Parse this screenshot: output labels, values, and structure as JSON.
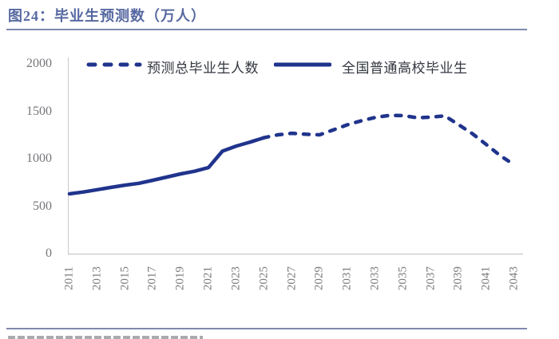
{
  "header": {
    "title": "图24：毕业生预测数（万人）"
  },
  "colors": {
    "line": "#20348c",
    "title_text": "#5668a0",
    "divider": "#7f88ad",
    "tick_text": "#76767b",
    "legend_text": "#33373f"
  },
  "chart_data": {
    "type": "line",
    "title": "毕业生预测数（万人）",
    "xlabel": "",
    "ylabel": "",
    "x_range": [
      2011,
      2043
    ],
    "ylim": [
      0,
      2000
    ],
    "y_ticks": [
      0,
      500,
      1000,
      1500,
      2000
    ],
    "x_ticks": [
      2011,
      2013,
      2015,
      2017,
      2019,
      2021,
      2023,
      2025,
      2027,
      2029,
      2031,
      2033,
      2035,
      2037,
      2039,
      2041,
      2043
    ],
    "grid": false,
    "legend_position": "top",
    "line_color": "#20348c",
    "series": [
      {
        "name": "预测总毕业生人数",
        "style": "dashed",
        "x": [
          2024,
          2025,
          2026,
          2027,
          2028,
          2029,
          2030,
          2031,
          2032,
          2033,
          2034,
          2035,
          2036,
          2037,
          2038,
          2039,
          2040,
          2041,
          2042,
          2043
        ],
        "values": [
          1176,
          1222,
          1252,
          1268,
          1258,
          1252,
          1305,
          1358,
          1400,
          1435,
          1456,
          1455,
          1432,
          1438,
          1452,
          1358,
          1262,
          1148,
          1032,
          935
        ]
      },
      {
        "name": "全国普通高校毕业生",
        "style": "solid",
        "x": [
          2011,
          2012,
          2013,
          2014,
          2015,
          2016,
          2017,
          2018,
          2019,
          2020,
          2021,
          2022,
          2023,
          2024,
          2025
        ],
        "values": [
          630,
          650,
          674,
          698,
          722,
          741,
          773,
          807,
          840,
          868,
          907,
          1080,
          1134,
          1176,
          1222
        ]
      }
    ]
  }
}
